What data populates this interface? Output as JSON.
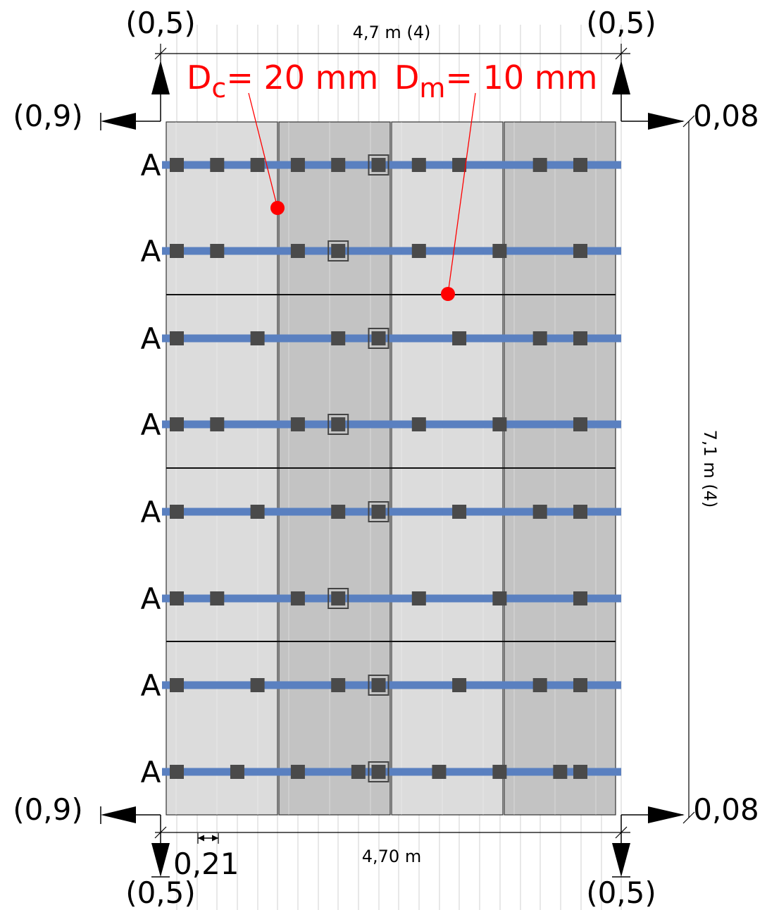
{
  "corner_labels": {
    "top_left": "(0,5)",
    "top_right": "(0,5)",
    "left_top": "(0,9)",
    "right_top": "0,08",
    "left_bottom": "(0,9)",
    "right_bottom": "0,08",
    "bottom_left": "(0,5)",
    "bottom_right": "(0,5)"
  },
  "dimensions": {
    "top_width": "4,7 m (4)",
    "bottom_width": "4,70 m",
    "height": "7,1 m (4)",
    "spacing": "0,21"
  },
  "callouts": {
    "dc_main": "D",
    "dc_sub": "c",
    "dc_value": "= 20 mm",
    "dm_main": "D",
    "dm_sub": "m",
    "dm_value": "= 10 mm"
  },
  "row_label": "A",
  "rows": [
    {
      "label": "A",
      "clips": [
        1,
        2,
        3,
        4,
        5,
        7,
        8,
        10,
        11
      ],
      "fixed": 6
    },
    {
      "label": "A",
      "clips": [
        1,
        2,
        4,
        7,
        9,
        11
      ],
      "fixed": 5
    },
    {
      "label": "A",
      "clips": [
        1,
        3,
        5,
        8,
        10,
        11
      ],
      "fixed": 6
    },
    {
      "label": "A",
      "clips": [
        1,
        2,
        4,
        7,
        9,
        11
      ],
      "fixed": 5
    },
    {
      "label": "A",
      "clips": [
        1,
        3,
        5,
        8,
        10,
        11
      ],
      "fixed": 6
    },
    {
      "label": "A",
      "clips": [
        1,
        2,
        4,
        7,
        9,
        11
      ],
      "fixed": 5
    },
    {
      "label": "A",
      "clips": [
        1,
        3,
        5,
        8,
        10,
        11
      ],
      "fixed": 6
    },
    {
      "label": "A",
      "clips": [
        1,
        2.5,
        4,
        5.5,
        7.5,
        9,
        10.5,
        11
      ],
      "fixed": 6
    }
  ],
  "colors": {
    "panel_light": "#dcdcdc",
    "panel_dark": "#c3c3c3",
    "rail": "#5a80c0",
    "clip": "#4a4a4a",
    "annotation": "#ff0000"
  }
}
